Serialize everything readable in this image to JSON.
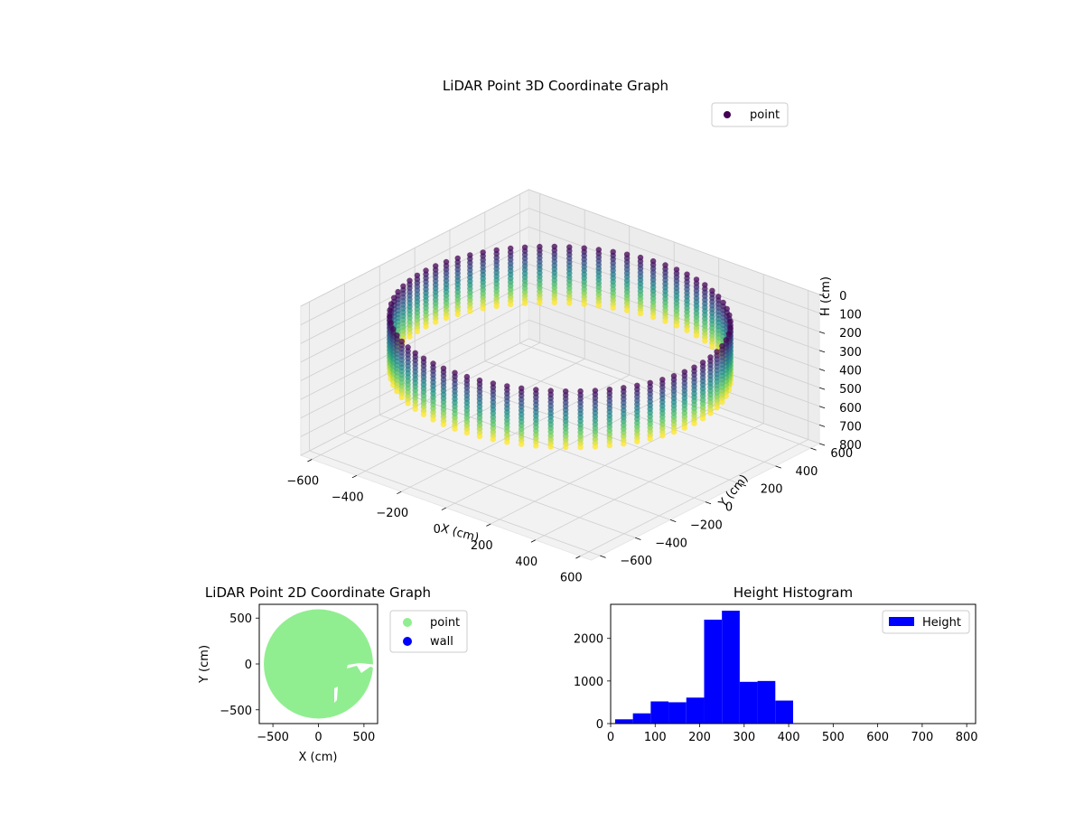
{
  "chart_data": [
    {
      "type": "scatter",
      "projection": "3d",
      "title": "LiDAR Point 3D Coordinate Graph",
      "xlabel": "X (cm)",
      "ylabel": "Y (cm)",
      "zlabel": "H (cm)",
      "xlim": [
        -650,
        650
      ],
      "ylim": [
        -650,
        650
      ],
      "zlim": [
        800,
        0
      ],
      "z_inverted": true,
      "x_ticks": [
        -600,
        -400,
        -200,
        0,
        200,
        400,
        600
      ],
      "y_ticks": [
        -600,
        -400,
        -200,
        0,
        200,
        400,
        600
      ],
      "z_ticks": [
        0,
        100,
        200,
        300,
        400,
        500,
        600,
        700,
        800
      ],
      "grid": true,
      "colormap": "viridis",
      "legend": {
        "position": "top-right",
        "entries": [
          {
            "name": "point",
            "color": "#440154"
          }
        ]
      },
      "series": [
        {
          "name": "point",
          "description_of_data": "cylindrical wall of points",
          "wall_radius": 600,
          "height_range": [
            100,
            400
          ],
          "angle_step_deg": 5,
          "height_step": 20
        }
      ]
    },
    {
      "type": "scatter",
      "title": "LiDAR Point 2D Coordinate Graph",
      "xlabel": "X (cm)",
      "ylabel": "Y (cm)",
      "xlim": [
        -650,
        650
      ],
      "ylim": [
        -650,
        650
      ],
      "x_ticks": [
        -500,
        0,
        500
      ],
      "y_ticks": [
        -500,
        0,
        500
      ],
      "legend": {
        "position": "outside-right",
        "entries": [
          {
            "name": "point",
            "color": "#90ee90"
          },
          {
            "name": "wall",
            "color": "#0000ff"
          }
        ]
      },
      "point_disk_radius": 600
    },
    {
      "type": "bar",
      "title": "Height Histogram",
      "xlim": [
        0,
        820
      ],
      "ylim": [
        0,
        2800
      ],
      "x_ticks": [
        0,
        100,
        200,
        300,
        400,
        500,
        600,
        700,
        800
      ],
      "y_ticks": [
        0,
        1000,
        2000
      ],
      "legend": {
        "position": "top-right",
        "entries": [
          {
            "name": "Height",
            "color": "#0000ff"
          }
        ]
      },
      "series": [
        {
          "name": "Height",
          "color": "#0000ff",
          "bins": [
            {
              "x0": 10,
              "x1": 50,
              "count": 100
            },
            {
              "x0": 50,
              "x1": 90,
              "count": 240
            },
            {
              "x0": 90,
              "x1": 130,
              "count": 520
            },
            {
              "x0": 130,
              "x1": 170,
              "count": 500
            },
            {
              "x0": 170,
              "x1": 210,
              "count": 610
            },
            {
              "x0": 210,
              "x1": 250,
              "count": 2440
            },
            {
              "x0": 250,
              "x1": 290,
              "count": 2650
            },
            {
              "x0": 290,
              "x1": 330,
              "count": 980
            },
            {
              "x0": 330,
              "x1": 370,
              "count": 1000
            },
            {
              "x0": 370,
              "x1": 410,
              "count": 540
            }
          ]
        }
      ]
    }
  ]
}
